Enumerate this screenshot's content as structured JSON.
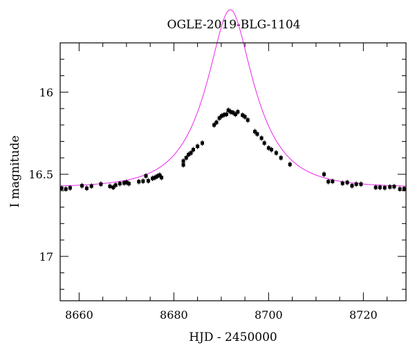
{
  "chart_data": {
    "type": "scatter",
    "title": "OGLE-2019-BLG-1104",
    "xlabel": "HJD - 2450000",
    "ylabel": "I magnitude",
    "xlim": [
      8656,
      8729
    ],
    "ylim": [
      17.27,
      15.7
    ],
    "y_inverted": true,
    "grid": false,
    "x_major_ticks": [
      8660,
      8680,
      8700,
      8720
    ],
    "x_major_tick_labels": [
      "8660",
      "8680",
      "8700",
      "8720"
    ],
    "y_major_ticks": [
      16.0,
      16.5,
      17.0
    ],
    "y_major_tick_labels": [
      "16",
      "16.5",
      "17"
    ],
    "x_minor_step": 5,
    "y_minor_step": 0.1,
    "model_color": "#ee22ee",
    "point_color": "#000000",
    "model": {
      "t0": 8691.9,
      "u0": 0.39,
      "tE": 9.8,
      "I_base": 16.58
    },
    "points": [
      {
        "x": 8656.3,
        "y": 16.585
      },
      {
        "x": 8657.2,
        "y": 16.59
      },
      {
        "x": 8658.1,
        "y": 16.583
      },
      {
        "x": 8660.6,
        "y": 16.57
      },
      {
        "x": 8661.6,
        "y": 16.585
      },
      {
        "x": 8662.6,
        "y": 16.572
      },
      {
        "x": 8664.6,
        "y": 16.56
      },
      {
        "x": 8666.5,
        "y": 16.573
      },
      {
        "x": 8667.2,
        "y": 16.58
      },
      {
        "x": 8667.7,
        "y": 16.566
      },
      {
        "x": 8668.6,
        "y": 16.557
      },
      {
        "x": 8669.5,
        "y": 16.553
      },
      {
        "x": 8670.0,
        "y": 16.549
      },
      {
        "x": 8670.5,
        "y": 16.557
      },
      {
        "x": 8672.6,
        "y": 16.545
      },
      {
        "x": 8673.5,
        "y": 16.542
      },
      {
        "x": 8674.1,
        "y": 16.51
      },
      {
        "x": 8674.6,
        "y": 16.54
      },
      {
        "x": 8675.5,
        "y": 16.525
      },
      {
        "x": 8676.0,
        "y": 16.52
      },
      {
        "x": 8676.5,
        "y": 16.512
      },
      {
        "x": 8677.0,
        "y": 16.505
      },
      {
        "x": 8677.4,
        "y": 16.52
      },
      {
        "x": 8682.0,
        "y": 16.443
      },
      {
        "x": 8682.0,
        "y": 16.42
      },
      {
        "x": 8682.6,
        "y": 16.4
      },
      {
        "x": 8683.1,
        "y": 16.38
      },
      {
        "x": 8683.6,
        "y": 16.37
      },
      {
        "x": 8684.1,
        "y": 16.35
      },
      {
        "x": 8685.0,
        "y": 16.33
      },
      {
        "x": 8686.0,
        "y": 16.31
      },
      {
        "x": 8688.5,
        "y": 16.2
      },
      {
        "x": 8689.0,
        "y": 16.184
      },
      {
        "x": 8689.6,
        "y": 16.158
      },
      {
        "x": 8690.1,
        "y": 16.145
      },
      {
        "x": 8690.6,
        "y": 16.138
      },
      {
        "x": 8691.1,
        "y": 16.135
      },
      {
        "x": 8691.5,
        "y": 16.11
      },
      {
        "x": 8692.0,
        "y": 16.12
      },
      {
        "x": 8692.5,
        "y": 16.125
      },
      {
        "x": 8693.0,
        "y": 16.135
      },
      {
        "x": 8693.5,
        "y": 16.12
      },
      {
        "x": 8694.5,
        "y": 16.14
      },
      {
        "x": 8695.0,
        "y": 16.15
      },
      {
        "x": 8695.6,
        "y": 16.17
      },
      {
        "x": 8697.1,
        "y": 16.24
      },
      {
        "x": 8697.6,
        "y": 16.255
      },
      {
        "x": 8698.5,
        "y": 16.28
      },
      {
        "x": 8699.1,
        "y": 16.31
      },
      {
        "x": 8700.0,
        "y": 16.34
      },
      {
        "x": 8700.6,
        "y": 16.35
      },
      {
        "x": 8701.6,
        "y": 16.37
      },
      {
        "x": 8702.6,
        "y": 16.4
      },
      {
        "x": 8704.5,
        "y": 16.44
      },
      {
        "x": 8711.7,
        "y": 16.5
      },
      {
        "x": 8712.6,
        "y": 16.545
      },
      {
        "x": 8713.5,
        "y": 16.543
      },
      {
        "x": 8715.6,
        "y": 16.555
      },
      {
        "x": 8716.6,
        "y": 16.55
      },
      {
        "x": 8717.6,
        "y": 16.57
      },
      {
        "x": 8718.5,
        "y": 16.56
      },
      {
        "x": 8719.5,
        "y": 16.56
      },
      {
        "x": 8722.6,
        "y": 16.58
      },
      {
        "x": 8723.5,
        "y": 16.58
      },
      {
        "x": 8724.5,
        "y": 16.582
      },
      {
        "x": 8725.6,
        "y": 16.577
      },
      {
        "x": 8726.5,
        "y": 16.575
      },
      {
        "x": 8727.7,
        "y": 16.59
      },
      {
        "x": 8728.6,
        "y": 16.588
      }
    ]
  }
}
